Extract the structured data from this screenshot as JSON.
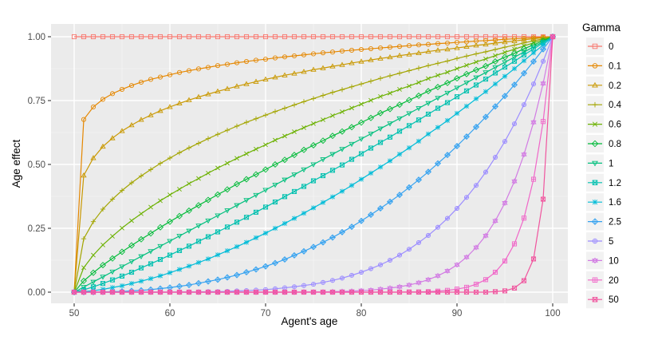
{
  "chart_data": {
    "type": "line",
    "title": "",
    "xlabel": "Agent's age",
    "ylabel": "Age effect",
    "xlim": [
      50,
      100
    ],
    "ylim": [
      0,
      1
    ],
    "grid": true,
    "legend_position": "right",
    "legend_title": "Gamma",
    "x_ticks": [
      50,
      60,
      70,
      80,
      90,
      100
    ],
    "x_tick_labels": [
      "50",
      "60",
      "70",
      "80",
      "90",
      "100"
    ],
    "y_ticks": [
      0,
      0.25,
      0.5,
      0.75,
      1
    ],
    "y_tick_labels": [
      "0.00",
      "0.25",
      "0.50",
      "0.75",
      "1.00"
    ],
    "x": [
      50,
      51,
      52,
      53,
      54,
      55,
      56,
      57,
      58,
      59,
      60,
      61,
      62,
      63,
      64,
      65,
      66,
      67,
      68,
      69,
      70,
      71,
      72,
      73,
      74,
      75,
      76,
      77,
      78,
      79,
      80,
      81,
      82,
      83,
      84,
      85,
      86,
      87,
      88,
      89,
      90,
      91,
      92,
      93,
      94,
      95,
      96,
      97,
      98,
      99,
      100
    ],
    "series": [
      {
        "name": "0",
        "color": "#F8766D",
        "shape": "square-open",
        "values": [
          1,
          1,
          1,
          1,
          1,
          1,
          1,
          1,
          1,
          1,
          1,
          1,
          1,
          1,
          1,
          1,
          1,
          1,
          1,
          1,
          1,
          1,
          1,
          1,
          1,
          1,
          1,
          1,
          1,
          1,
          1,
          1,
          1,
          1,
          1,
          1,
          1,
          1,
          1,
          1,
          1,
          1,
          1,
          1,
          1,
          1,
          1,
          1,
          1,
          1,
          1
        ]
      },
      {
        "name": "0.1",
        "color": "#E58700",
        "shape": "circle-open",
        "values": [
          0,
          0.676,
          0.725,
          0.755,
          0.777,
          0.794,
          0.809,
          0.822,
          0.833,
          0.842,
          0.851,
          0.86,
          0.867,
          0.874,
          0.88,
          0.887,
          0.892,
          0.898,
          0.903,
          0.908,
          0.912,
          0.917,
          0.921,
          0.925,
          0.929,
          0.933,
          0.937,
          0.94,
          0.944,
          0.947,
          0.95,
          0.953,
          0.956,
          0.959,
          0.962,
          0.965,
          0.968,
          0.97,
          0.973,
          0.975,
          0.978,
          0.98,
          0.983,
          0.985,
          0.987,
          0.99,
          0.992,
          0.994,
          0.996,
          0.998,
          1
        ]
      },
      {
        "name": "0.2",
        "color": "#C99800",
        "shape": "triangle-open",
        "values": [
          0,
          0.457,
          0.525,
          0.57,
          0.603,
          0.631,
          0.654,
          0.675,
          0.693,
          0.71,
          0.725,
          0.739,
          0.752,
          0.764,
          0.775,
          0.786,
          0.796,
          0.806,
          0.815,
          0.824,
          0.833,
          0.841,
          0.849,
          0.856,
          0.863,
          0.871,
          0.877,
          0.884,
          0.89,
          0.897,
          0.903,
          0.909,
          0.915,
          0.92,
          0.926,
          0.931,
          0.936,
          0.942,
          0.947,
          0.951,
          0.956,
          0.961,
          0.966,
          0.97,
          0.975,
          0.979,
          0.983,
          0.988,
          0.992,
          0.996,
          1
        ]
      },
      {
        "name": "0.4",
        "color": "#A3A500",
        "shape": "plus",
        "values": [
          0,
          0.209,
          0.276,
          0.325,
          0.364,
          0.398,
          0.428,
          0.455,
          0.48,
          0.504,
          0.525,
          0.546,
          0.565,
          0.583,
          0.601,
          0.618,
          0.634,
          0.65,
          0.665,
          0.679,
          0.693,
          0.707,
          0.72,
          0.733,
          0.746,
          0.758,
          0.77,
          0.782,
          0.793,
          0.804,
          0.815,
          0.826,
          0.837,
          0.847,
          0.857,
          0.867,
          0.877,
          0.887,
          0.896,
          0.905,
          0.915,
          0.924,
          0.933,
          0.941,
          0.95,
          0.959,
          0.967,
          0.976,
          0.984,
          0.992,
          1
        ]
      },
      {
        "name": "0.6",
        "color": "#6BB100",
        "shape": "cross",
        "values": [
          0,
          0.096,
          0.145,
          0.185,
          0.219,
          0.251,
          0.28,
          0.307,
          0.333,
          0.358,
          0.381,
          0.403,
          0.425,
          0.445,
          0.466,
          0.486,
          0.505,
          0.524,
          0.542,
          0.56,
          0.577,
          0.595,
          0.611,
          0.628,
          0.644,
          0.66,
          0.675,
          0.691,
          0.706,
          0.721,
          0.736,
          0.751,
          0.766,
          0.779,
          0.794,
          0.807,
          0.821,
          0.836,
          0.849,
          0.861,
          0.875,
          0.888,
          0.901,
          0.913,
          0.926,
          0.939,
          0.951,
          0.964,
          0.976,
          0.988,
          1
        ]
      },
      {
        "name": "0.8",
        "color": "#00BA38",
        "shape": "diamond-open",
        "values": [
          0,
          0.044,
          0.076,
          0.106,
          0.132,
          0.158,
          0.183,
          0.207,
          0.23,
          0.254,
          0.276,
          0.298,
          0.319,
          0.34,
          0.361,
          0.382,
          0.402,
          0.423,
          0.442,
          0.461,
          0.48,
          0.5,
          0.518,
          0.537,
          0.557,
          0.575,
          0.593,
          0.612,
          0.629,
          0.646,
          0.664,
          0.682,
          0.701,
          0.717,
          0.734,
          0.752,
          0.769,
          0.787,
          0.803,
          0.819,
          0.837,
          0.854,
          0.87,
          0.885,
          0.903,
          0.92,
          0.935,
          0.953,
          0.968,
          0.984,
          1
        ]
      },
      {
        "name": "1",
        "color": "#00BF7D",
        "shape": "triangle-down-open",
        "values": [
          0,
          0.02,
          0.04,
          0.06,
          0.08,
          0.1,
          0.12,
          0.14,
          0.16,
          0.18,
          0.2,
          0.22,
          0.24,
          0.26,
          0.28,
          0.3,
          0.32,
          0.34,
          0.36,
          0.38,
          0.4,
          0.42,
          0.44,
          0.46,
          0.48,
          0.5,
          0.52,
          0.54,
          0.56,
          0.58,
          0.6,
          0.62,
          0.64,
          0.66,
          0.68,
          0.7,
          0.72,
          0.74,
          0.76,
          0.78,
          0.8,
          0.82,
          0.84,
          0.86,
          0.88,
          0.9,
          0.92,
          0.94,
          0.96,
          0.98,
          1
        ]
      },
      {
        "name": "1.2",
        "color": "#00C0AF",
        "shape": "square-cross",
        "values": [
          0,
          0.009,
          0.021,
          0.034,
          0.048,
          0.063,
          0.078,
          0.095,
          0.111,
          0.128,
          0.145,
          0.163,
          0.18,
          0.199,
          0.217,
          0.236,
          0.255,
          0.274,
          0.293,
          0.313,
          0.333,
          0.353,
          0.374,
          0.394,
          0.414,
          0.436,
          0.456,
          0.477,
          0.498,
          0.52,
          0.542,
          0.564,
          0.586,
          0.607,
          0.63,
          0.652,
          0.674,
          0.697,
          0.72,
          0.742,
          0.765,
          0.788,
          0.811,
          0.834,
          0.858,
          0.881,
          0.904,
          0.929,
          0.952,
          0.976,
          1
        ]
      },
      {
        "name": "1.6",
        "color": "#00BCD8",
        "shape": "asterisk",
        "values": [
          0,
          0.002,
          0.006,
          0.011,
          0.018,
          0.025,
          0.034,
          0.043,
          0.053,
          0.064,
          0.076,
          0.089,
          0.102,
          0.116,
          0.13,
          0.146,
          0.162,
          0.178,
          0.195,
          0.213,
          0.231,
          0.25,
          0.269,
          0.289,
          0.309,
          0.33,
          0.351,
          0.373,
          0.395,
          0.418,
          0.442,
          0.466,
          0.49,
          0.514,
          0.54,
          0.565,
          0.591,
          0.619,
          0.645,
          0.672,
          0.7,
          0.728,
          0.757,
          0.785,
          0.815,
          0.845,
          0.875,
          0.906,
          0.937,
          0.968,
          1
        ]
      },
      {
        "name": "2.5",
        "color": "#35A2F0",
        "shape": "diamond-plus",
        "values": [
          0,
          0,
          0,
          0.001,
          0.002,
          0.003,
          0.005,
          0.007,
          0.01,
          0.014,
          0.018,
          0.023,
          0.028,
          0.035,
          0.042,
          0.049,
          0.058,
          0.067,
          0.078,
          0.089,
          0.101,
          0.114,
          0.128,
          0.144,
          0.16,
          0.177,
          0.195,
          0.214,
          0.235,
          0.256,
          0.279,
          0.303,
          0.328,
          0.354,
          0.381,
          0.41,
          0.44,
          0.471,
          0.504,
          0.537,
          0.572,
          0.609,
          0.647,
          0.686,
          0.727,
          0.768,
          0.812,
          0.857,
          0.903,
          0.951,
          1
        ]
      },
      {
        "name": "5",
        "color": "#9C8DFF",
        "shape": "circle-plus",
        "values": [
          0,
          0,
          0,
          0,
          0,
          0,
          0,
          0,
          0,
          0,
          0,
          0.001,
          0.001,
          0.001,
          0.002,
          0.002,
          0.003,
          0.005,
          0.006,
          0.008,
          0.01,
          0.013,
          0.017,
          0.021,
          0.026,
          0.031,
          0.038,
          0.046,
          0.055,
          0.066,
          0.078,
          0.092,
          0.107,
          0.125,
          0.145,
          0.168,
          0.194,
          0.222,
          0.254,
          0.289,
          0.328,
          0.371,
          0.418,
          0.47,
          0.528,
          0.59,
          0.659,
          0.734,
          0.815,
          0.904,
          1
        ]
      },
      {
        "name": "10",
        "color": "#D27CE3",
        "shape": "hourglass",
        "values": [
          0,
          0,
          0,
          0,
          0,
          0,
          0,
          0,
          0,
          0,
          0,
          0,
          0,
          0,
          0,
          0,
          0,
          0,
          0,
          0,
          0,
          0,
          0,
          0,
          0.001,
          0.001,
          0.001,
          0.002,
          0.003,
          0.004,
          0.006,
          0.008,
          0.012,
          0.016,
          0.021,
          0.028,
          0.037,
          0.049,
          0.064,
          0.083,
          0.107,
          0.137,
          0.175,
          0.221,
          0.279,
          0.349,
          0.434,
          0.539,
          0.665,
          0.817,
          1
        ]
      },
      {
        "name": "20",
        "color": "#F066C8",
        "shape": "square-plus",
        "values": [
          0,
          0,
          0,
          0,
          0,
          0,
          0,
          0,
          0,
          0,
          0,
          0,
          0,
          0,
          0,
          0,
          0,
          0,
          0,
          0,
          0,
          0,
          0,
          0,
          0,
          0,
          0,
          0,
          0,
          0,
          0,
          0,
          0,
          0,
          0,
          0.001,
          0.001,
          0.002,
          0.004,
          0.007,
          0.012,
          0.019,
          0.031,
          0.049,
          0.078,
          0.122,
          0.189,
          0.29,
          0.442,
          0.668,
          1
        ]
      },
      {
        "name": "50",
        "color": "#F0559E",
        "shape": "square-cross",
        "values": [
          0,
          0,
          0,
          0,
          0,
          0,
          0,
          0,
          0,
          0,
          0,
          0,
          0,
          0,
          0,
          0,
          0,
          0,
          0,
          0,
          0,
          0,
          0,
          0,
          0,
          0,
          0,
          0,
          0,
          0,
          0,
          0,
          0,
          0,
          0,
          0,
          0,
          0,
          0,
          0,
          0,
          0,
          0,
          0,
          0.002,
          0.005,
          0.016,
          0.045,
          0.13,
          0.364,
          1
        ]
      }
    ]
  }
}
